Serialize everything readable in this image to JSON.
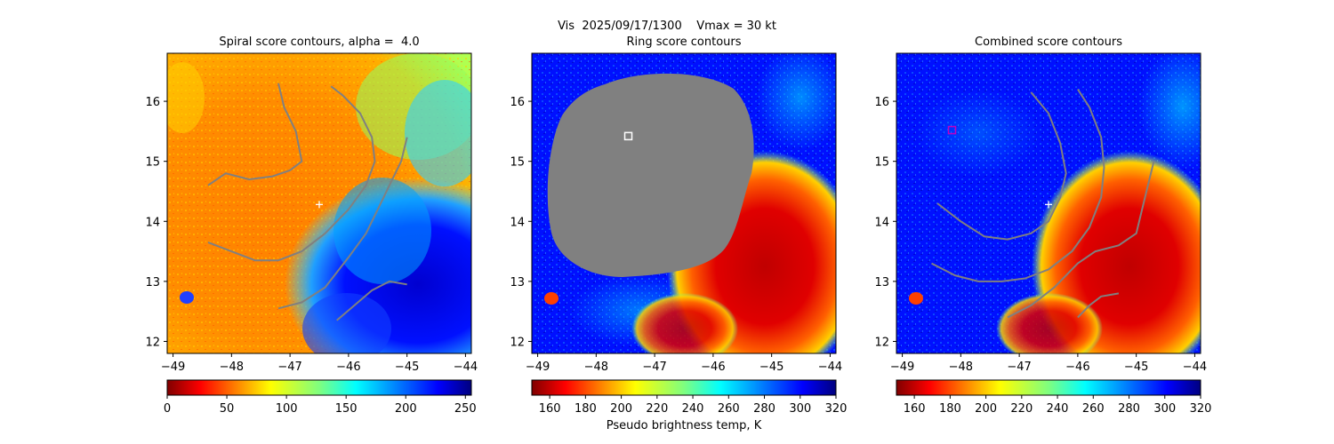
{
  "suptitle": "Vis  2025/09/17/1300    Vmax = 30 kt",
  "colorbar_label": "Pseudo brightness temp, K",
  "colors": {
    "frame": "#000000",
    "contour": "#808080",
    "mask": "#808080",
    "center_marker": "#ffffff",
    "box_marker_panel2": "#ffffff",
    "box_marker_panel3": "#c000c0"
  },
  "chart_data": [
    {
      "type": "heatmap",
      "title": "Spiral score contours, alpha =  4.0",
      "xlim": [
        -49.1,
        -43.9
      ],
      "ylim": [
        11.8,
        16.8
      ],
      "xticks": [
        -49,
        -48,
        -47,
        -46,
        -45,
        -44
      ],
      "yticks": [
        12,
        13,
        14,
        15,
        16
      ],
      "colormap": "jet_r",
      "colorbar": {
        "range": [
          0,
          255
        ],
        "ticks": [
          0,
          50,
          100,
          150,
          200,
          250
        ]
      },
      "center_marker": {
        "lon": -46.5,
        "lat": 14.28,
        "symbol": "+"
      },
      "contours": [
        [
          [
            -48.4,
            14.6
          ],
          [
            -48.1,
            14.8
          ],
          [
            -47.7,
            14.7
          ],
          [
            -47.3,
            14.75
          ],
          [
            -47.0,
            14.85
          ],
          [
            -46.8,
            15.0
          ],
          [
            -46.9,
            15.5
          ],
          [
            -47.1,
            15.9
          ],
          [
            -47.2,
            16.3
          ]
        ],
        [
          [
            -48.4,
            13.65
          ],
          [
            -48.0,
            13.5
          ],
          [
            -47.6,
            13.35
          ],
          [
            -47.2,
            13.35
          ],
          [
            -46.8,
            13.5
          ],
          [
            -46.4,
            13.8
          ],
          [
            -46.0,
            14.2
          ],
          [
            -45.7,
            14.6
          ],
          [
            -45.55,
            15.0
          ],
          [
            -45.6,
            15.4
          ],
          [
            -45.8,
            15.8
          ],
          [
            -46.1,
            16.1
          ],
          [
            -46.3,
            16.25
          ]
        ],
        [
          [
            -47.2,
            12.55
          ],
          [
            -46.8,
            12.65
          ],
          [
            -46.4,
            12.9
          ],
          [
            -46.0,
            13.4
          ],
          [
            -45.7,
            13.8
          ],
          [
            -45.5,
            14.2
          ],
          [
            -45.3,
            14.6
          ],
          [
            -45.1,
            15.0
          ],
          [
            -45.0,
            15.4
          ]
        ],
        [
          [
            -46.2,
            12.35
          ],
          [
            -45.9,
            12.6
          ],
          [
            -45.6,
            12.85
          ],
          [
            -45.3,
            13.0
          ],
          [
            -45.0,
            12.95
          ]
        ]
      ]
    },
    {
      "type": "heatmap",
      "title": "Ring score contours",
      "xlim": [
        -49.1,
        -43.9
      ],
      "ylim": [
        11.8,
        16.8
      ],
      "xticks": [
        -49,
        -48,
        -47,
        -46,
        -45,
        -44
      ],
      "yticks": [
        12,
        13,
        14,
        15,
        16
      ],
      "colormap": "jet_r",
      "colorbar": {
        "range": [
          150,
          320
        ],
        "ticks": [
          160,
          180,
          200,
          220,
          240,
          260,
          280,
          300,
          320
        ]
      },
      "box_marker": {
        "lon": -47.45,
        "lat": 15.42
      },
      "mask_region": "ring score mask (grey)"
    },
    {
      "type": "heatmap",
      "title": "Combined score contours",
      "xlim": [
        -49.1,
        -43.9
      ],
      "ylim": [
        11.8,
        16.8
      ],
      "xticks": [
        -49,
        -48,
        -47,
        -46,
        -45,
        -44
      ],
      "yticks": [
        12,
        13,
        14,
        15,
        16
      ],
      "colormap": "jet_r",
      "colorbar": {
        "range": [
          150,
          320
        ],
        "ticks": [
          160,
          180,
          200,
          220,
          240,
          260,
          280,
          300,
          320
        ]
      },
      "center_marker": {
        "lon": -46.5,
        "lat": 14.28,
        "symbol": "+"
      },
      "box_marker": {
        "lon": -48.15,
        "lat": 15.52
      },
      "contours": [
        [
          [
            -48.4,
            14.3
          ],
          [
            -48.0,
            14.0
          ],
          [
            -47.6,
            13.75
          ],
          [
            -47.2,
            13.7
          ],
          [
            -46.8,
            13.8
          ],
          [
            -46.5,
            14.0
          ],
          [
            -46.3,
            14.4
          ],
          [
            -46.2,
            14.8
          ],
          [
            -46.3,
            15.3
          ],
          [
            -46.5,
            15.8
          ],
          [
            -46.8,
            16.15
          ]
        ],
        [
          [
            -48.5,
            13.3
          ],
          [
            -48.1,
            13.1
          ],
          [
            -47.7,
            13.0
          ],
          [
            -47.3,
            13.0
          ],
          [
            -46.9,
            13.05
          ],
          [
            -46.5,
            13.2
          ],
          [
            -46.1,
            13.5
          ],
          [
            -45.8,
            13.9
          ],
          [
            -45.6,
            14.4
          ],
          [
            -45.55,
            14.9
          ],
          [
            -45.6,
            15.4
          ],
          [
            -45.8,
            15.9
          ],
          [
            -46.0,
            16.2
          ]
        ],
        [
          [
            -47.2,
            12.4
          ],
          [
            -46.8,
            12.6
          ],
          [
            -46.4,
            12.9
          ],
          [
            -46.0,
            13.3
          ],
          [
            -45.7,
            13.5
          ],
          [
            -45.3,
            13.6
          ],
          [
            -45.0,
            13.8
          ],
          [
            -44.9,
            14.2
          ],
          [
            -44.8,
            14.6
          ],
          [
            -44.7,
            15.0
          ]
        ],
        [
          [
            -46.0,
            12.4
          ],
          [
            -45.8,
            12.6
          ],
          [
            -45.6,
            12.75
          ],
          [
            -45.3,
            12.8
          ]
        ]
      ]
    }
  ]
}
